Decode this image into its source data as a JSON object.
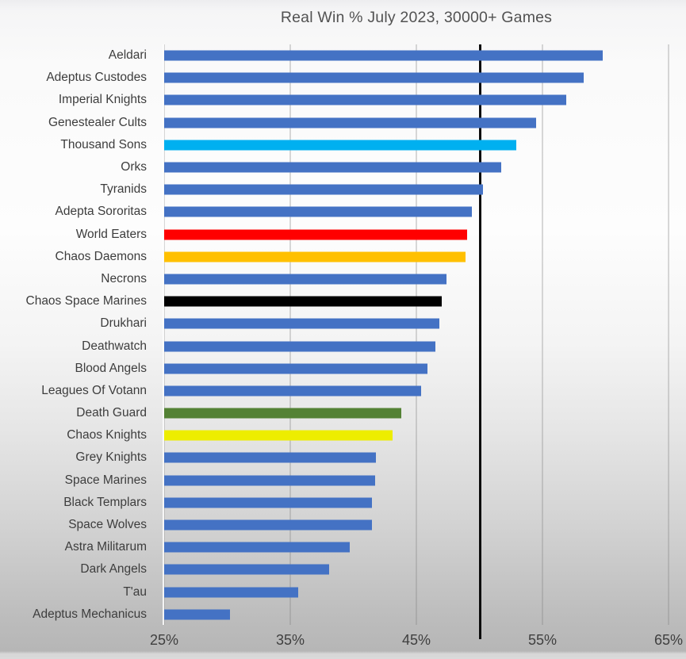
{
  "chart_data": {
    "type": "bar",
    "orientation": "horizontal",
    "title": "Real Win % July 2023, 30000+ Games",
    "categories": [
      "Aeldari",
      "Adeptus Custodes",
      "Imperial Knights",
      "Genestealer Cults",
      "Thousand Sons",
      "Orks",
      "Tyranids",
      "Adepta Sororitas",
      "World Eaters",
      "Chaos Daemons",
      "Necrons",
      "Chaos Space Marines",
      "Drukhari",
      "Deathwatch",
      "Blood Angels",
      "Leagues Of Votann",
      "Death Guard",
      "Chaos Knights",
      "Grey Knights",
      "Space Marines",
      "Black Templars",
      "Space Wolves",
      "Astra Militarum",
      "Dark Angels",
      "T'au",
      "Adeptus Mechanicus"
    ],
    "values": [
      59.8,
      58.3,
      56.9,
      54.5,
      52.9,
      51.7,
      50.3,
      49.4,
      49.0,
      48.9,
      47.4,
      47.0,
      46.8,
      46.5,
      45.9,
      45.4,
      43.8,
      43.1,
      41.8,
      41.7,
      41.5,
      41.5,
      39.7,
      38.1,
      35.6,
      30.2
    ],
    "bar_colors": [
      "#4472C4",
      "#4472C4",
      "#4472C4",
      "#4472C4",
      "#00B0F0",
      "#4472C4",
      "#4472C4",
      "#4472C4",
      "#FF0000",
      "#FFC000",
      "#4472C4",
      "#000000",
      "#4472C4",
      "#4472C4",
      "#4472C4",
      "#4472C4",
      "#548235",
      "#EDED00",
      "#4472C4",
      "#4472C4",
      "#4472C4",
      "#4472C4",
      "#4472C4",
      "#4472C4",
      "#4472C4",
      "#4472C4"
    ],
    "xlabel": "",
    "ylabel": "",
    "xlim": [
      25,
      65
    ],
    "x_tick_values": [
      25,
      35,
      45,
      55,
      65
    ],
    "x_ticks": [
      "25%",
      "35%",
      "45%",
      "55%",
      "65%"
    ],
    "reference_line": {
      "value": 50,
      "color": "#0d0d0d"
    },
    "default_bar_color": "#4472C4",
    "grid": "vertical-only",
    "legend": "none"
  }
}
